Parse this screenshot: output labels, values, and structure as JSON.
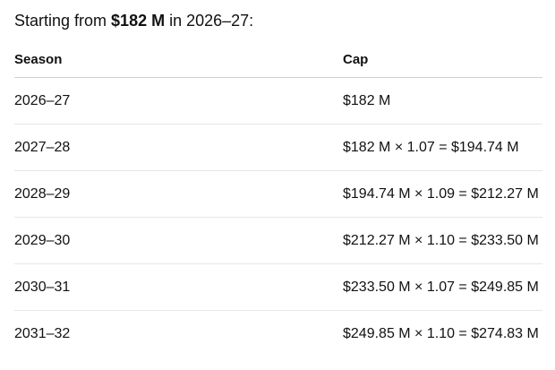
{
  "intro": {
    "prefix": "Starting from ",
    "amount": "$182 M",
    "suffix": " in 2026–27:"
  },
  "table": {
    "headers": {
      "season": "Season",
      "cap": "Cap"
    },
    "rows": [
      {
        "season": "2026–27",
        "cap": "$182 M"
      },
      {
        "season": "2027–28",
        "cap": "$182 M × 1.07 = $194.74 M"
      },
      {
        "season": "2028–29",
        "cap": "$194.74 M × 1.09 = $212.27 M"
      },
      {
        "season": "2029–30",
        "cap": "$212.27 M × 1.10 = $233.50 M"
      },
      {
        "season": "2030–31",
        "cap": "$233.50 M × 1.07 = $249.85 M"
      },
      {
        "season": "2031–32",
        "cap": "$249.85 M × 1.10 = $274.83 M"
      }
    ]
  }
}
